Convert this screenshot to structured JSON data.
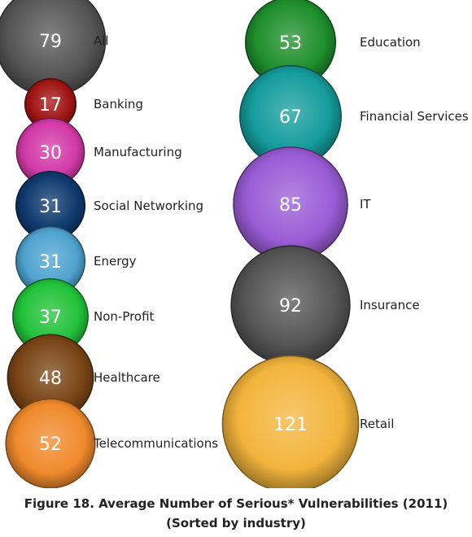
{
  "chart_data": {
    "type": "bubble",
    "title": "Figure 18. Average Number of Serious* Vulnerabilities (2011)",
    "subtitle": "(Sorted by industry)",
    "points": [
      {
        "label": "All",
        "value": 79,
        "color": "#555555"
      },
      {
        "label": "Banking",
        "value": 17,
        "color": "#a11414"
      },
      {
        "label": "Manufacturing",
        "value": 30,
        "color": "#d23aa8"
      },
      {
        "label": "Social Networking",
        "value": 31,
        "color": "#0f3a6e"
      },
      {
        "label": "Energy",
        "value": 31,
        "color": "#4fa3cf"
      },
      {
        "label": "Non-Profit",
        "value": 37,
        "color": "#22c23a"
      },
      {
        "label": "Healthcare",
        "value": 48,
        "color": "#7a4516"
      },
      {
        "label": "Telecommunications",
        "value": 52,
        "color": "#f08a2c"
      },
      {
        "label": "Education",
        "value": 53,
        "color": "#1e8f2c"
      },
      {
        "label": "Financial Services",
        "value": 67,
        "color": "#159c9c"
      },
      {
        "label": "IT",
        "value": 85,
        "color": "#9a5cd6"
      },
      {
        "label": "Insurance",
        "value": 92,
        "color": "#555555"
      },
      {
        "label": "Retail",
        "value": 121,
        "color": "#f3b43c"
      }
    ]
  }
}
